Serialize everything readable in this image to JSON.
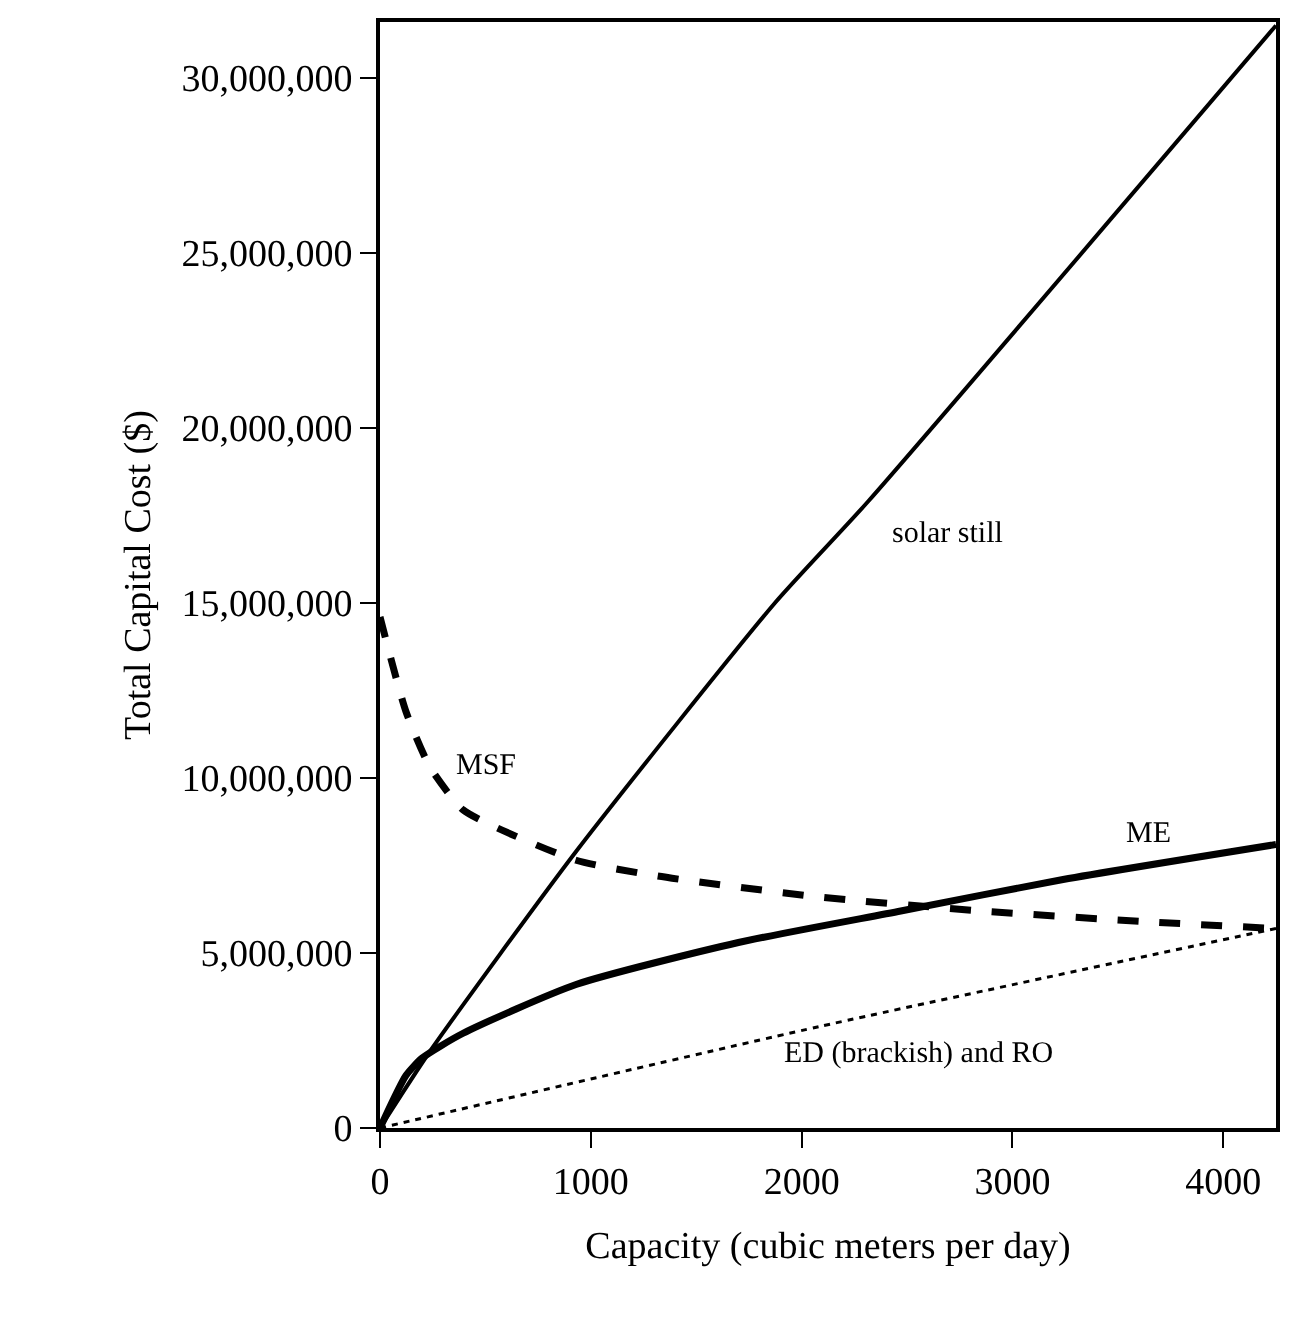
{
  "chart_data": {
    "type": "line",
    "xlabel": "Capacity (cubic meters per day)",
    "ylabel": "Total Capital Cost ($)",
    "xlim": [
      0,
      4250
    ],
    "xticks": [
      0,
      1000,
      2000,
      3000,
      4000
    ],
    "ylim": [
      0,
      31600000
    ],
    "yticks": [
      {
        "value": 0,
        "label": "0"
      },
      {
        "value": 5000000,
        "label": "5,000,000"
      },
      {
        "value": 10000000,
        "label": "10,000,000"
      },
      {
        "value": 15000000,
        "label": "15,000,000"
      },
      {
        "value": 20000000,
        "label": "20,000,000"
      },
      {
        "value": 25000000,
        "label": "25,000,000"
      },
      {
        "value": 30000000,
        "label": "30,000,000"
      }
    ],
    "legend": false,
    "marker": "none",
    "series": [
      {
        "name": "solar still",
        "color": "#000000",
        "line_style": "solid",
        "x": [
          0,
          238,
          930,
          1873,
          2315,
          4250
        ],
        "values": [
          0,
          2200000,
          7900000,
          15000000,
          17900000,
          31500000
        ]
      },
      {
        "name": "MSF",
        "color": "#000000",
        "line_style": "dashed",
        "x": [
          0,
          123,
          238,
          392,
          546,
          930,
          1315,
          2085,
          2850,
          3620,
          4250
        ],
        "values": [
          14600000,
          11900000,
          10300000,
          9100000,
          8600000,
          7650000,
          7200000,
          6600000,
          6200000,
          5900000,
          5700000
        ]
      },
      {
        "name": "ME",
        "color": "#000000",
        "line_style": "solid",
        "x": [
          0,
          123,
          200,
          392,
          930,
          1700,
          2470,
          3240,
          4250
        ],
        "values": [
          0,
          1500000,
          2000000,
          2700000,
          4100000,
          5300000,
          6200000,
          7100000,
          8100000
        ]
      },
      {
        "name": "ED (brackish) and RO",
        "color": "#000000",
        "line_style": "dotted",
        "x": [
          0,
          2085,
          4250
        ],
        "values": [
          0,
          2900000,
          5700000
        ]
      }
    ]
  }
}
